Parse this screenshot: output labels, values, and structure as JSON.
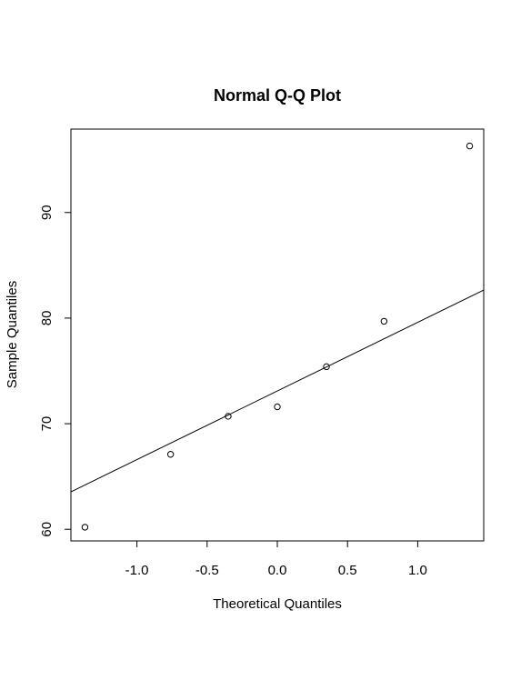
{
  "chart_data": {
    "type": "scatter",
    "title": "Normal Q-Q Plot",
    "xlabel": "Theoretical Quantiles",
    "ylabel": "Sample Quantiles",
    "xlim": [
      -1.47,
      1.47
    ],
    "ylim": [
      58.9,
      97.9
    ],
    "x_ticks": [
      -1.0,
      -0.5,
      0.0,
      0.5,
      1.0
    ],
    "x_tick_labels": [
      "-1.0",
      "-0.5",
      "0.0",
      "0.5",
      "1.0"
    ],
    "y_ticks": [
      60,
      70,
      80,
      90
    ],
    "y_tick_labels": [
      "60",
      "70",
      "80",
      "90"
    ],
    "grid": false,
    "legend": "none",
    "marker": "open-circle",
    "points": [
      {
        "x": -1.37,
        "y": 60.2
      },
      {
        "x": -0.76,
        "y": 67.1
      },
      {
        "x": -0.35,
        "y": 70.7
      },
      {
        "x": 0.0,
        "y": 71.6
      },
      {
        "x": 0.35,
        "y": 75.4
      },
      {
        "x": 0.76,
        "y": 79.7
      },
      {
        "x": 1.37,
        "y": 96.3
      }
    ],
    "reference_line": {
      "intercept": 73.1,
      "slope": 6.5
    }
  }
}
